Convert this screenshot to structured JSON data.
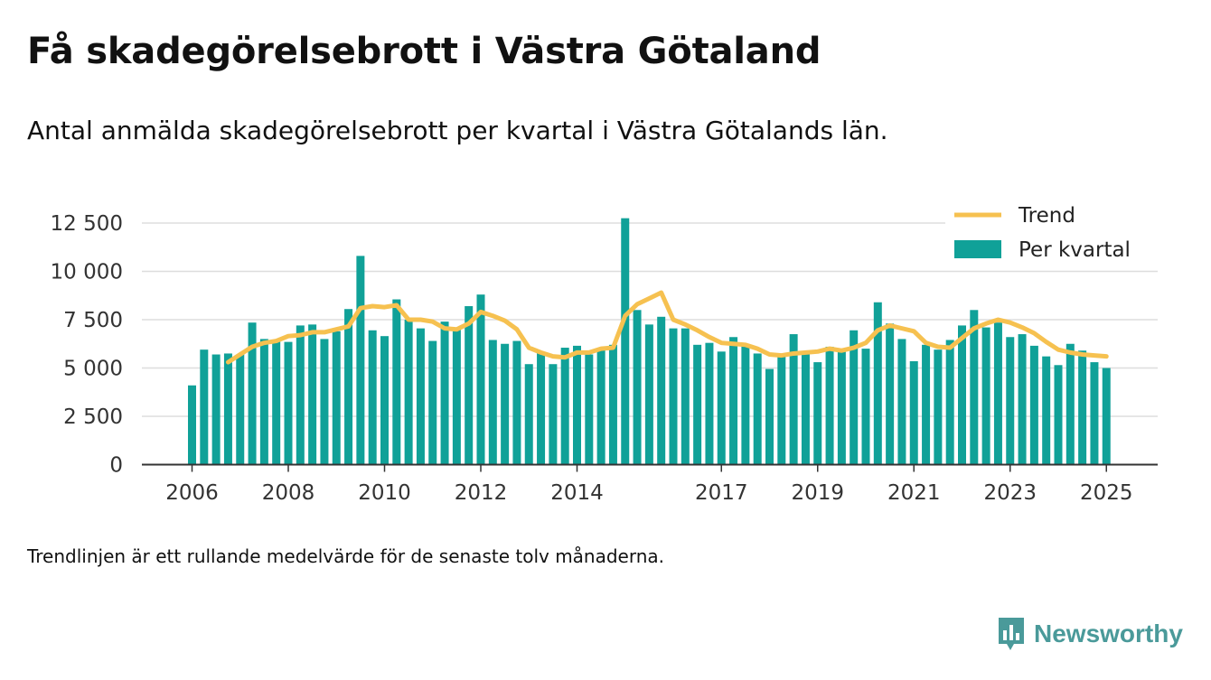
{
  "title": "Få skadegörelsebrott i Västra Götaland",
  "subtitle": "Antal anmälda skadegörelsebrott per kvartal i Västra Götalands län.",
  "footnote": "Trendlinjen är ett rullande medelvärde för de senaste tolv månaderna.",
  "brand": {
    "name": "Newsworthy"
  },
  "colors": {
    "bars": "#10a198",
    "trend": "#f6c150",
    "grid": "#dddddd",
    "axis": "#333333"
  },
  "chart_data": {
    "type": "bar",
    "y_tick_labels": [
      "0",
      "2 500",
      "5 000",
      "7 500",
      "10 000",
      "12 500"
    ],
    "x_tick_labels": [
      "2006",
      "2008",
      "2010",
      "2012",
      "2014",
      "2017",
      "2019",
      "2021",
      "2023",
      "2025"
    ],
    "ylim": [
      0,
      13000
    ],
    "grid": true,
    "legend_position": "top-right",
    "series": [
      {
        "name": "Per kvartal",
        "type": "bar",
        "x": [
          "2006Q1",
          "2006Q2",
          "2006Q3",
          "2006Q4",
          "2007Q1",
          "2007Q2",
          "2007Q3",
          "2007Q4",
          "2008Q1",
          "2008Q2",
          "2008Q3",
          "2008Q4",
          "2009Q1",
          "2009Q2",
          "2009Q3",
          "2009Q4",
          "2010Q1",
          "2010Q2",
          "2010Q3",
          "2010Q4",
          "2011Q1",
          "2011Q2",
          "2011Q3",
          "2011Q4",
          "2012Q1",
          "2012Q2",
          "2012Q3",
          "2012Q4",
          "2013Q1",
          "2013Q2",
          "2013Q3",
          "2013Q4",
          "2014Q1",
          "2014Q2",
          "2014Q3",
          "2014Q4",
          "2015Q1",
          "2015Q2",
          "2015Q3",
          "2015Q4",
          "2016Q1",
          "2016Q2",
          "2016Q3",
          "2016Q4",
          "2017Q1",
          "2017Q2",
          "2017Q3",
          "2017Q4",
          "2018Q1",
          "2018Q2",
          "2018Q3",
          "2018Q4",
          "2019Q1",
          "2019Q2",
          "2019Q3",
          "2019Q4",
          "2020Q1",
          "2020Q2",
          "2020Q3",
          "2020Q4",
          "2021Q1",
          "2021Q2",
          "2021Q3",
          "2021Q4",
          "2022Q1",
          "2022Q2",
          "2022Q3",
          "2022Q4",
          "2023Q1",
          "2023Q2",
          "2023Q3",
          "2023Q4",
          "2024Q1",
          "2024Q2",
          "2024Q3",
          "2024Q4",
          "2025Q1"
        ],
        "values": [
          4100,
          5950,
          5700,
          5750,
          5700,
          7350,
          6500,
          6400,
          6350,
          7200,
          7250,
          6500,
          6900,
          8050,
          10800,
          6950,
          6650,
          8550,
          7500,
          7050,
          6400,
          7400,
          7050,
          8200,
          8800,
          6450,
          6250,
          6400,
          5200,
          5800,
          5200,
          6050,
          6150,
          5700,
          5950,
          6200,
          12750,
          8000,
          7250,
          7650,
          7050,
          7050,
          6200,
          6300,
          5850,
          6600,
          6200,
          5750,
          4950,
          5700,
          6750,
          5750,
          5300,
          6100,
          5850,
          6950,
          6000,
          8400,
          7300,
          6500,
          5350,
          6200,
          5950,
          6450,
          7200,
          8000,
          7100,
          7350,
          6600,
          6750,
          6150,
          5600,
          5150,
          6250,
          5900,
          5300,
          5000
        ]
      },
      {
        "name": "Trend",
        "type": "line",
        "x": [
          "2006Q4",
          "2007Q1",
          "2007Q2",
          "2007Q3",
          "2007Q4",
          "2008Q1",
          "2008Q2",
          "2008Q3",
          "2008Q4",
          "2009Q1",
          "2009Q2",
          "2009Q3",
          "2009Q4",
          "2010Q1",
          "2010Q2",
          "2010Q3",
          "2010Q4",
          "2011Q1",
          "2011Q2",
          "2011Q3",
          "2011Q4",
          "2012Q1",
          "2012Q2",
          "2012Q3",
          "2012Q4",
          "2013Q1",
          "2013Q2",
          "2013Q3",
          "2013Q4",
          "2014Q1",
          "2014Q2",
          "2014Q3",
          "2014Q4",
          "2015Q1",
          "2015Q2",
          "2015Q3",
          "2015Q4",
          "2016Q1",
          "2016Q2",
          "2016Q3",
          "2016Q4",
          "2017Q1",
          "2017Q2",
          "2017Q3",
          "2017Q4",
          "2018Q1",
          "2018Q2",
          "2018Q3",
          "2018Q4",
          "2019Q1",
          "2019Q2",
          "2019Q3",
          "2019Q4",
          "2020Q1",
          "2020Q2",
          "2020Q3",
          "2020Q4",
          "2021Q1",
          "2021Q2",
          "2021Q3",
          "2021Q4",
          "2022Q1",
          "2022Q2",
          "2022Q3",
          "2022Q4",
          "2023Q1",
          "2023Q2",
          "2023Q3",
          "2023Q4",
          "2024Q1",
          "2024Q2",
          "2024Q3",
          "2024Q4",
          "2025Q1"
        ],
        "values": [
          5300,
          5700,
          6100,
          6300,
          6400,
          6650,
          6700,
          6850,
          6850,
          7000,
          7150,
          8100,
          8200,
          8150,
          8250,
          7500,
          7500,
          7400,
          7050,
          7000,
          7300,
          7900,
          7700,
          7450,
          7000,
          6050,
          5800,
          5600,
          5550,
          5800,
          5800,
          6000,
          6050,
          7700,
          8300,
          8600,
          8900,
          7500,
          7250,
          6950,
          6600,
          6300,
          6250,
          6200,
          6000,
          5700,
          5650,
          5750,
          5800,
          5850,
          6000,
          5900,
          6050,
          6300,
          6950,
          7200,
          7050,
          6900,
          6300,
          6100,
          6050,
          6550,
          7050,
          7300,
          7500,
          7350,
          7100,
          6800,
          6350,
          5950,
          5800,
          5700,
          5650,
          5600
        ]
      }
    ]
  }
}
